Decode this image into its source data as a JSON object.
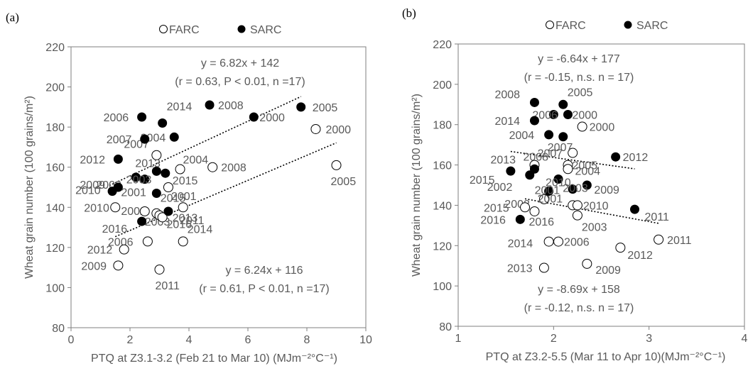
{
  "chart_data": [
    {
      "type": "scatter",
      "panel_label": "(a)",
      "xlabel": "PTQ at Z3.1-3.2 (Feb 21 to Mar 10) (MJm⁻²°C⁻¹)",
      "ylabel": "Wheat grain number  (100 grains/m²)",
      "xlim": [
        0,
        10
      ],
      "ylim": [
        80,
        220
      ],
      "xticks": [
        0,
        2,
        4,
        6,
        8,
        10
      ],
      "yticks": [
        80,
        100,
        120,
        140,
        160,
        180,
        200,
        220
      ],
      "grid": false,
      "legend": {
        "position": "top",
        "entries": [
          "FARC",
          "SARC"
        ]
      },
      "series": [
        {
          "name": "FARC",
          "marker": "open-circle",
          "points": [
            {
              "label": "2000",
              "x": 8.3,
              "y": 179
            },
            {
              "label": "2005",
              "x": 9.0,
              "y": 161
            },
            {
              "label": "2008",
              "x": 4.8,
              "y": 160
            },
            {
              "label": "2004",
              "x": 3.7,
              "y": 159
            },
            {
              "label": "2007",
              "x": 2.9,
              "y": 166
            },
            {
              "label": "2001",
              "x": 3.3,
              "y": 150
            },
            {
              "label": "2002",
              "x": 2.9,
              "y": 137
            },
            {
              "label": "2015",
              "x": 3.8,
              "y": 140
            },
            {
              "label": "2010",
              "x": 1.5,
              "y": 140
            },
            {
              "label": "2016",
              "x": 3.0,
              "y": 136
            },
            {
              "label": "2003",
              "x": 2.5,
              "y": 138
            },
            {
              "label": "2006",
              "x": 2.6,
              "y": 123
            },
            {
              "label": "2014",
              "x": 3.8,
              "y": 123
            },
            {
              "label": "2012",
              "x": 1.8,
              "y": 119
            },
            {
              "label": "2009",
              "x": 1.6,
              "y": 111
            },
            {
              "label": "2011",
              "x": 3.0,
              "y": 109
            },
            {
              "label": "2013",
              "x": 3.1,
              "y": 135
            }
          ]
        },
        {
          "name": "SARC",
          "marker": "filled-circle",
          "points": [
            {
              "label": "2008",
              "x": 4.7,
              "y": 191
            },
            {
              "label": "2005",
              "x": 7.8,
              "y": 190
            },
            {
              "label": "2000",
              "x": 6.2,
              "y": 185
            },
            {
              "label": "2006",
              "x": 2.4,
              "y": 185
            },
            {
              "label": "2014",
              "x": 3.1,
              "y": 182
            },
            {
              "label": "2004",
              "x": 3.5,
              "y": 175
            },
            {
              "label": "2007",
              "x": 2.5,
              "y": 174
            },
            {
              "label": "2012",
              "x": 1.6,
              "y": 164
            },
            {
              "label": "2013",
              "x": 2.9,
              "y": 158
            },
            {
              "label": "2002",
              "x": 2.2,
              "y": 155
            },
            {
              "label": "2015",
              "x": 3.2,
              "y": 157
            },
            {
              "label": "2003",
              "x": 2.5,
              "y": 154
            },
            {
              "label": "2009",
              "x": 1.6,
              "y": 150
            },
            {
              "label": "2010",
              "x": 1.4,
              "y": 148
            },
            {
              "label": "2001",
              "x": 2.9,
              "y": 147
            },
            {
              "label": "2011",
              "x": 3.3,
              "y": 138
            },
            {
              "label": "2016",
              "x": 2.4,
              "y": 133
            }
          ]
        }
      ],
      "trendlines": [
        {
          "series": "SARC",
          "equation": "y = 6.82x + 142",
          "stats": "(r = 0.63,  P < 0.01, n =17)",
          "slope": 6.82,
          "intercept": 142,
          "x_range": [
            1.3,
            7.8
          ]
        },
        {
          "series": "FARC",
          "equation": "y = 6.24x + 116",
          "stats": "(r = 0.61,  P < 0.01, n =17)",
          "slope": 6.24,
          "intercept": 116,
          "x_range": [
            1.5,
            9.0
          ]
        }
      ]
    },
    {
      "type": "scatter",
      "panel_label": "(b)",
      "xlabel": "PTQ at Z3.2-5.5 (Mar 11 to Apr 10)(MJm⁻²°C⁻¹)",
      "ylabel": "Wheat grain number  (100 grains/m²)",
      "xlim": [
        1,
        4
      ],
      "ylim": [
        80,
        220
      ],
      "xticks": [
        1,
        2,
        3,
        4
      ],
      "yticks": [
        80,
        100,
        120,
        140,
        160,
        180,
        200,
        220
      ],
      "grid": false,
      "legend": {
        "position": "top",
        "entries": [
          "FARC",
          "SARC"
        ]
      },
      "series": [
        {
          "name": "FARC",
          "marker": "open-circle",
          "points": [
            {
              "label": "2000",
              "x": 2.3,
              "y": 179
            },
            {
              "label": "2007",
              "x": 2.2,
              "y": 166
            },
            {
              "label": "2008",
              "x": 1.8,
              "y": 160
            },
            {
              "label": "2005",
              "x": 2.15,
              "y": 160
            },
            {
              "label": "2004",
              "x": 2.15,
              "y": 158
            },
            {
              "label": "2002",
              "x": 1.9,
              "y": 143
            },
            {
              "label": "2001",
              "x": 2.2,
              "y": 140
            },
            {
              "label": "2010",
              "x": 2.25,
              "y": 140
            },
            {
              "label": "2015",
              "x": 1.7,
              "y": 139
            },
            {
              "label": "2016",
              "x": 1.8,
              "y": 137
            },
            {
              "label": "2003",
              "x": 2.25,
              "y": 135
            },
            {
              "label": "2014",
              "x": 1.95,
              "y": 122
            },
            {
              "label": "2006",
              "x": 2.05,
              "y": 122
            },
            {
              "label": "2012",
              "x": 2.7,
              "y": 119
            },
            {
              "label": "2011",
              "x": 3.1,
              "y": 123
            },
            {
              "label": "2009",
              "x": 2.35,
              "y": 111
            },
            {
              "label": "2013",
              "x": 1.9,
              "y": 109
            }
          ]
        },
        {
          "name": "SARC",
          "marker": "filled-circle",
          "points": [
            {
              "label": "2008",
              "x": 1.8,
              "y": 191
            },
            {
              "label": "2005",
              "x": 2.1,
              "y": 190
            },
            {
              "label": "2006",
              "x": 2.0,
              "y": 185
            },
            {
              "label": "2000",
              "x": 2.15,
              "y": 185
            },
            {
              "label": "2014",
              "x": 1.8,
              "y": 182
            },
            {
              "label": "2004",
              "x": 1.95,
              "y": 175
            },
            {
              "label": "2007",
              "x": 2.1,
              "y": 174
            },
            {
              "label": "2012",
              "x": 2.65,
              "y": 164
            },
            {
              "label": "2013",
              "x": 1.8,
              "y": 158
            },
            {
              "label": "2015",
              "x": 1.55,
              "y": 157
            },
            {
              "label": "2002",
              "x": 1.75,
              "y": 155
            },
            {
              "label": "2010",
              "x": 2.05,
              "y": 153
            },
            {
              "label": "2009",
              "x": 2.35,
              "y": 150
            },
            {
              "label": "2003",
              "x": 2.2,
              "y": 148
            },
            {
              "label": "2001",
              "x": 1.95,
              "y": 147
            },
            {
              "label": "2011",
              "x": 2.85,
              "y": 138
            },
            {
              "label": "2016",
              "x": 1.65,
              "y": 133
            }
          ]
        }
      ],
      "trendlines": [
        {
          "series": "SARC",
          "equation": "y = -6.64x + 177",
          "stats": "(r = -0.15, n.s. n = 17)",
          "slope": -6.64,
          "intercept": 177,
          "x_range": [
            1.55,
            2.85
          ]
        },
        {
          "series": "FARC",
          "equation": "y = -8.69x + 158",
          "stats": "(r = -0.12, n.s. n = 17)",
          "slope": -8.69,
          "intercept": 158,
          "x_range": [
            1.7,
            3.1
          ]
        }
      ]
    }
  ]
}
